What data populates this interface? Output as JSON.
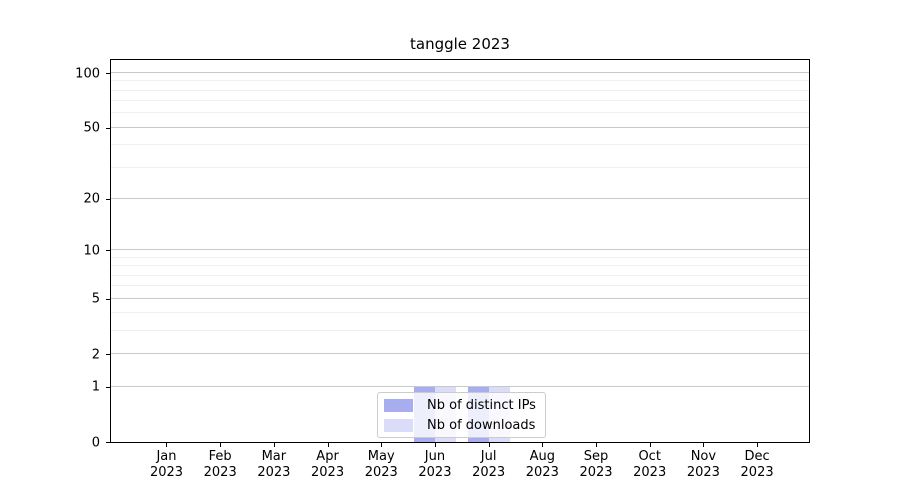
{
  "chart_data": {
    "type": "bar",
    "title": "tanggle 2023",
    "categories": [
      "Jan 2023",
      "Feb 2023",
      "Mar 2023",
      "Apr 2023",
      "May 2023",
      "Jun 2023",
      "Jul 2023",
      "Aug 2023",
      "Sep 2023",
      "Oct 2023",
      "Nov 2023",
      "Dec 2023"
    ],
    "series": [
      {
        "name": "Nb of distinct IPs",
        "color": "#a8adf0",
        "values": [
          0,
          0,
          0,
          0,
          0,
          1,
          1,
          0,
          0,
          0,
          0,
          0
        ]
      },
      {
        "name": "Nb of downloads",
        "color": "#dadcf8",
        "values": [
          0,
          0,
          0,
          0,
          0,
          1,
          1,
          0,
          0,
          0,
          0,
          0
        ]
      }
    ],
    "xlabel": "",
    "ylabel": "",
    "yscale": "log1p",
    "ylim": [
      0,
      107
    ],
    "y_major_ticks": [
      100,
      50,
      20,
      10,
      5,
      2,
      1,
      0
    ],
    "y_minor_ticks": [
      90,
      80,
      70,
      60,
      40,
      30,
      9,
      8,
      7,
      6,
      4,
      3
    ],
    "grid": true,
    "legend": {
      "position": "lower center",
      "labels": [
        "Nb of distinct IPs",
        "Nb of downloads"
      ]
    }
  },
  "colors": {
    "major_grid": "#c9c9c9",
    "minor_grid": "#efefef",
    "spine": "#000000",
    "legend_border": "#cccccc",
    "background": "#ffffff"
  }
}
